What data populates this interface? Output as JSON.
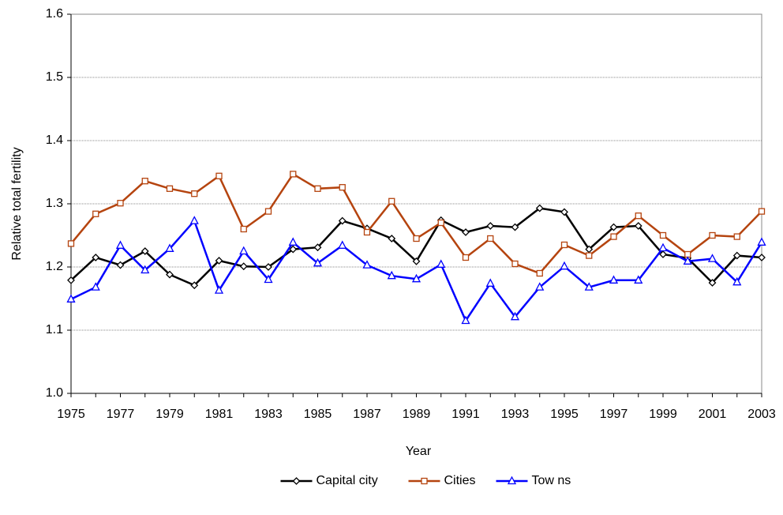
{
  "chart_data": {
    "type": "line",
    "xlabel": "Year",
    "ylabel": "Relative total fertility",
    "x": [
      1975,
      1976,
      1977,
      1978,
      1979,
      1980,
      1981,
      1982,
      1983,
      1984,
      1985,
      1986,
      1987,
      1988,
      1989,
      1990,
      1991,
      1992,
      1993,
      1994,
      1995,
      1996,
      1997,
      1998,
      1999,
      2000,
      2001,
      2002,
      2003
    ],
    "series": [
      {
        "name": "Capital city",
        "color": "#000000",
        "marker": "diamond",
        "values": [
          1.179,
          1.215,
          1.203,
          1.225,
          1.188,
          1.171,
          1.21,
          1.201,
          1.2,
          1.228,
          1.231,
          1.273,
          1.261,
          1.245,
          1.209,
          1.274,
          1.255,
          1.265,
          1.263,
          1.293,
          1.287,
          1.228,
          1.263,
          1.265,
          1.22,
          1.214,
          1.175,
          1.218,
          1.215
        ]
      },
      {
        "name": "Cities",
        "color": "#b5440f",
        "marker": "square",
        "values": [
          1.237,
          1.284,
          1.301,
          1.336,
          1.324,
          1.316,
          1.344,
          1.26,
          1.288,
          1.347,
          1.324,
          1.326,
          1.255,
          1.304,
          1.245,
          1.27,
          1.215,
          1.245,
          1.205,
          1.19,
          1.235,
          1.218,
          1.248,
          1.281,
          1.25,
          1.22,
          1.25,
          1.248,
          1.288
        ]
      },
      {
        "name": "Tow ns",
        "color": "#0000ff",
        "marker": "triangle",
        "values": [
          1.149,
          1.168,
          1.234,
          1.195,
          1.229,
          1.273,
          1.163,
          1.225,
          1.18,
          1.239,
          1.206,
          1.234,
          1.203,
          1.186,
          1.181,
          1.204,
          1.115,
          1.174,
          1.121,
          1.168,
          1.201,
          1.168,
          1.179,
          1.179,
          1.23,
          1.209,
          1.213,
          1.176,
          1.239
        ]
      }
    ],
    "xlim": [
      1975,
      2003
    ],
    "xticks": [
      1975,
      1977,
      1979,
      1981,
      1983,
      1985,
      1987,
      1989,
      1991,
      1993,
      1995,
      1997,
      1999,
      2001,
      2003
    ],
    "ylim": [
      1,
      1.6
    ],
    "yticks": [
      {
        "value": 1,
        "label": "1.0"
      },
      1.1,
      1.2,
      1.3,
      1.4,
      1.5,
      1.6
    ],
    "grid": true,
    "legend": "bottom"
  }
}
